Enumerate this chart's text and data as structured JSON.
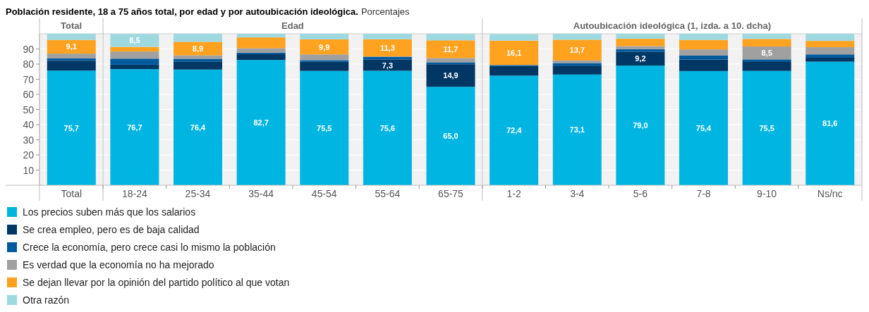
{
  "chart_data": {
    "type": "bar",
    "stacked": true,
    "title": "Población residente, 18 a 75 años total, por edad y por autoubicación ideológica.",
    "subtitle": "Porcentajes",
    "annotations": [
      "Total",
      "Edad",
      "Autoubicación ideológica (1, izda. a 10. dcha)"
    ],
    "categories": [
      "Total",
      "18-24",
      "25-34",
      "35-44",
      "45-54",
      "55-64",
      "65-75",
      "1-2",
      "3-4",
      "5-6",
      "7-8",
      "9-10",
      "Ns/nc"
    ],
    "ylim": [
      0,
      100
    ],
    "yticks": [
      10,
      20,
      30,
      40,
      50,
      60,
      70,
      80,
      90
    ],
    "grid": "y",
    "legend": "bottom",
    "series": [
      {
        "name": "Los precios suben más que los salarios",
        "color": "#00b5e2",
        "values": [
          75.7,
          76.7,
          76.4,
          82.7,
          75.5,
          75.6,
          65.0,
          72.4,
          73.1,
          79.0,
          75.4,
          75.5,
          81.6
        ],
        "value_labels": [
          "75,7",
          "76,7",
          "76,4",
          "82,7",
          "75,5",
          "75,6",
          "65,0",
          "72,4",
          "73,1",
          "79,0",
          "75,4",
          "75,5",
          "81,6"
        ]
      },
      {
        "name": "Se crea empleo, pero es de baja calidad",
        "color": "#003764",
        "values": [
          6.5,
          2.9,
          5.3,
          3.8,
          6.0,
          7.3,
          14.9,
          6.3,
          5.9,
          9.2,
          7.6,
          6.3,
          2.6
        ],
        "value_labels": [
          null,
          null,
          null,
          null,
          null,
          "7,3",
          "14,9",
          null,
          null,
          "9,2",
          null,
          null,
          null
        ]
      },
      {
        "name": "Crece la economía, pero crece casi lo mismo la población",
        "color": "#005a9c",
        "values": [
          1.6,
          4.0,
          1.8,
          1.1,
          1.1,
          1.8,
          1.3,
          0.7,
          1.7,
          1.7,
          2.6,
          1.3,
          2.2
        ]
      },
      {
        "name": "Es verdad que la economía no ha mejorado",
        "color": "#a0a0a0",
        "values": [
          3.1,
          4.7,
          2.3,
          2.9,
          3.8,
          0.4,
          2.8,
          null,
          1.7,
          2.0,
          4.1,
          8.5,
          4.8
        ],
        "value_labels": [
          null,
          null,
          null,
          null,
          null,
          null,
          null,
          null,
          null,
          null,
          null,
          "8,5",
          null
        ]
      },
      {
        "name": "Se dejan llevar por la opinión del partido político al que votan",
        "color": "#ffa21f",
        "values": [
          9.1,
          3.1,
          8.9,
          7.1,
          9.9,
          11.3,
          11.7,
          16.1,
          13.7,
          4.8,
          6.3,
          5.0,
          4.1
        ],
        "value_labels": [
          "9,1",
          null,
          "8,9",
          null,
          "9,9",
          "11,3",
          "11,7",
          "16,1",
          "13,7",
          null,
          null,
          null,
          null
        ]
      },
      {
        "name": "Otra razón",
        "color": "#9ed9e0",
        "values": [
          4.0,
          8.5,
          5.3,
          2.4,
          3.7,
          3.6,
          4.3,
          4.3,
          3.9,
          3.3,
          4.0,
          3.4,
          4.7
        ],
        "value_labels": [
          null,
          "8,5",
          null,
          null,
          null,
          null,
          null,
          null,
          null,
          null,
          null,
          null,
          null
        ]
      }
    ]
  }
}
